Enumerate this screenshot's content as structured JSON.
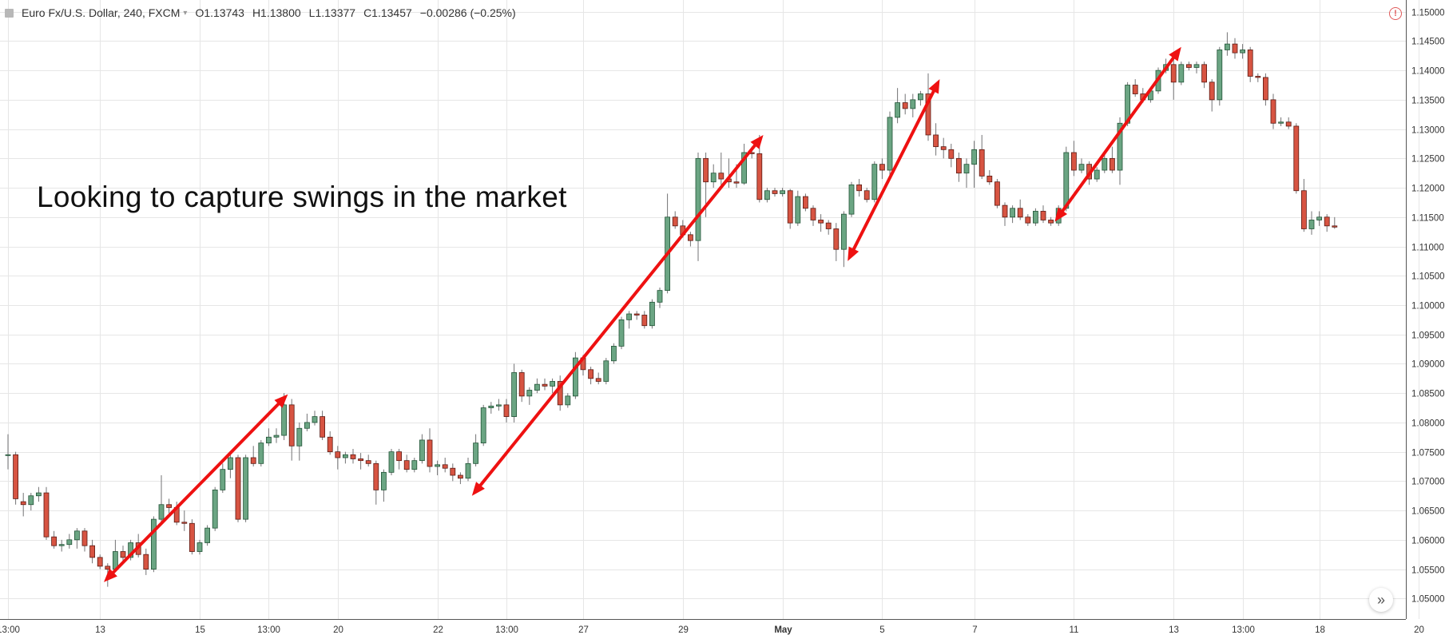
{
  "legend": {
    "symbol_title": "Euro Fx/U.S. Dollar, 240, FXCM",
    "open": "O1.13743",
    "high": "H1.13800",
    "low": "L1.13377",
    "close": "C1.13457",
    "change": "−0.00286 (−0.25%)"
  },
  "annotation": "Looking to capture swings in the market",
  "icons": {
    "symbol": "symbol-square-icon",
    "dropdown": "caret-down-icon",
    "alert": "alert-circle-icon",
    "scroll": "double-chevron-right-icon"
  },
  "colors": {
    "up": "#6ba583",
    "up_border": "#225437",
    "down": "#d75442",
    "down_border": "#5b1a13",
    "wick": "#737375",
    "arrow": "#ee1111",
    "grid": "#e6e6e6",
    "axis_text": "#333333"
  },
  "chart_data": {
    "type": "candlestick",
    "title": "Euro Fx/U.S. Dollar, 240, FXCM",
    "price_axis": {
      "side": "right",
      "ylim": [
        1.0465,
        1.152
      ],
      "ticks": [
        "1.15000",
        "1.14500",
        "1.14000",
        "1.13500",
        "1.13000",
        "1.12500",
        "1.12000",
        "1.11500",
        "1.11000",
        "1.10500",
        "1.10000",
        "1.09500",
        "1.09000",
        "1.08500",
        "1.08000",
        "1.07500",
        "1.07000",
        "1.06500",
        "1.06000",
        "1.05500",
        "1.05000"
      ]
    },
    "time_axis": {
      "labels": [
        {
          "label": "13:00",
          "bar": 0
        },
        {
          "label": "13",
          "bar": 12
        },
        {
          "label": "15",
          "bar": 25
        },
        {
          "label": "13:00",
          "bar": 34
        },
        {
          "label": "20",
          "bar": 43
        },
        {
          "label": "22",
          "bar": 56
        },
        {
          "label": "13:00",
          "bar": 65
        },
        {
          "label": "27",
          "bar": 75
        },
        {
          "label": "29",
          "bar": 88
        },
        {
          "label": "May",
          "bar": 101
        },
        {
          "label": "5",
          "bar": 114
        },
        {
          "label": "7",
          "bar": 126
        },
        {
          "label": "11",
          "bar": 139
        },
        {
          "label": "13",
          "bar": 152
        },
        {
          "label": "13:00",
          "bar": 161
        },
        {
          "label": "18",
          "bar": 171
        },
        {
          "label": "20",
          "bar": 184
        }
      ]
    },
    "grid": true,
    "candles": [
      [
        1.0745,
        1.078,
        1.072,
        1.0745
      ],
      [
        1.0745,
        1.075,
        1.066,
        1.067
      ],
      [
        1.0665,
        1.068,
        1.064,
        1.066
      ],
      [
        1.066,
        1.068,
        1.065,
        1.0675
      ],
      [
        1.0675,
        1.069,
        1.0665,
        1.068
      ],
      [
        1.068,
        1.069,
        1.06,
        1.0605
      ],
      [
        1.0605,
        1.0615,
        1.0585,
        1.059
      ],
      [
        1.059,
        1.06,
        1.058,
        1.0592
      ],
      [
        1.0592,
        1.061,
        1.0585,
        1.06
      ],
      [
        1.06,
        1.062,
        1.0585,
        1.0615
      ],
      [
        1.0615,
        1.062,
        1.058,
        1.059
      ],
      [
        1.059,
        1.06,
        1.056,
        1.057
      ],
      [
        1.057,
        1.0575,
        1.055,
        1.0555
      ],
      [
        1.0555,
        1.056,
        1.052,
        1.055
      ],
      [
        1.055,
        1.06,
        1.0545,
        1.058
      ],
      [
        1.058,
        1.059,
        1.056,
        1.057
      ],
      [
        1.057,
        1.06,
        1.0565,
        1.0595
      ],
      [
        1.0595,
        1.061,
        1.057,
        1.0575
      ],
      [
        1.0575,
        1.0585,
        1.054,
        1.055
      ],
      [
        1.055,
        1.064,
        1.0545,
        1.0635
      ],
      [
        1.0635,
        1.071,
        1.063,
        1.066
      ],
      [
        1.066,
        1.067,
        1.0645,
        1.0655
      ],
      [
        1.0655,
        1.0665,
        1.0625,
        1.063
      ],
      [
        1.063,
        1.065,
        1.0615,
        1.0628
      ],
      [
        1.0628,
        1.0635,
        1.0575,
        1.058
      ],
      [
        1.058,
        1.06,
        1.0575,
        1.0595
      ],
      [
        1.0595,
        1.0625,
        1.059,
        1.062
      ],
      [
        1.062,
        1.069,
        1.0615,
        1.0685
      ],
      [
        1.0685,
        1.073,
        1.068,
        1.072
      ],
      [
        1.072,
        1.0745,
        1.0705,
        1.074
      ],
      [
        1.074,
        1.0745,
        1.063,
        1.0635
      ],
      [
        1.0635,
        1.0745,
        1.063,
        1.074
      ],
      [
        1.074,
        1.076,
        1.0725,
        1.073
      ],
      [
        1.073,
        1.077,
        1.0725,
        1.0765
      ],
      [
        1.0765,
        1.079,
        1.076,
        1.0775
      ],
      [
        1.0775,
        1.079,
        1.0765,
        1.0778
      ],
      [
        1.0778,
        1.085,
        1.077,
        1.083
      ],
      [
        1.083,
        1.084,
        1.0735,
        1.076
      ],
      [
        1.076,
        1.08,
        1.0735,
        1.079
      ],
      [
        1.079,
        1.0815,
        1.0785,
        1.08
      ],
      [
        1.08,
        1.082,
        1.0795,
        1.081
      ],
      [
        1.081,
        1.082,
        1.077,
        1.0775
      ],
      [
        1.0775,
        1.0785,
        1.0745,
        1.075
      ],
      [
        1.075,
        1.076,
        1.072,
        1.074
      ],
      [
        1.074,
        1.075,
        1.073,
        1.0745
      ],
      [
        1.0745,
        1.0755,
        1.073,
        1.0738
      ],
      [
        1.0738,
        1.0748,
        1.072,
        1.0735
      ],
      [
        1.0735,
        1.0745,
        1.0725,
        1.073
      ],
      [
        1.073,
        1.0735,
        1.066,
        1.0685
      ],
      [
        1.0685,
        1.072,
        1.0665,
        1.0715
      ],
      [
        1.0715,
        1.0755,
        1.071,
        1.075
      ],
      [
        1.075,
        1.0755,
        1.072,
        1.0735
      ],
      [
        1.0735,
        1.0745,
        1.0715,
        1.072
      ],
      [
        1.072,
        1.074,
        1.0715,
        1.0735
      ],
      [
        1.0735,
        1.078,
        1.073,
        1.077
      ],
      [
        1.077,
        1.079,
        1.0715,
        1.0725
      ],
      [
        1.0725,
        1.0735,
        1.071,
        1.0728
      ],
      [
        1.0728,
        1.074,
        1.0715,
        1.0722
      ],
      [
        1.0722,
        1.073,
        1.07,
        1.071
      ],
      [
        1.071,
        1.0715,
        1.0695,
        1.0705
      ],
      [
        1.0705,
        1.074,
        1.07,
        1.073
      ],
      [
        1.073,
        1.078,
        1.0725,
        1.0765
      ],
      [
        1.0765,
        1.083,
        1.076,
        1.0825
      ],
      [
        1.0825,
        1.0835,
        1.0815,
        1.0828
      ],
      [
        1.0828,
        1.084,
        1.082,
        1.083
      ],
      [
        1.083,
        1.084,
        1.08,
        1.081
      ],
      [
        1.081,
        1.09,
        1.08,
        1.0885
      ],
      [
        1.0885,
        1.089,
        1.0835,
        1.0845
      ],
      [
        1.0845,
        1.086,
        1.083,
        1.0855
      ],
      [
        1.0855,
        1.0875,
        1.085,
        1.0865
      ],
      [
        1.0865,
        1.0875,
        1.0855,
        1.0862
      ],
      [
        1.0862,
        1.0875,
        1.085,
        1.087
      ],
      [
        1.087,
        1.088,
        1.082,
        1.083
      ],
      [
        1.083,
        1.085,
        1.0825,
        1.0845
      ],
      [
        1.0845,
        1.092,
        1.084,
        1.091
      ],
      [
        1.091,
        1.0915,
        1.088,
        1.089
      ],
      [
        1.089,
        1.0895,
        1.0865,
        1.0875
      ],
      [
        1.0875,
        1.0885,
        1.0865,
        1.087
      ],
      [
        1.087,
        1.091,
        1.0865,
        1.0905
      ],
      [
        1.0905,
        1.0935,
        1.09,
        1.093
      ],
      [
        1.093,
        1.098,
        1.0925,
        1.0975
      ],
      [
        1.0975,
        1.099,
        1.096,
        1.0985
      ],
      [
        1.0985,
        1.099,
        1.0975,
        1.0983
      ],
      [
        1.0983,
        1.099,
        1.096,
        1.0965
      ],
      [
        1.0965,
        1.101,
        1.096,
        1.1005
      ],
      [
        1.1005,
        1.103,
        1.0995,
        1.1025
      ],
      [
        1.1025,
        1.119,
        1.102,
        1.115
      ],
      [
        1.115,
        1.116,
        1.113,
        1.1135
      ],
      [
        1.1135,
        1.1145,
        1.1115,
        1.112
      ],
      [
        1.112,
        1.1125,
        1.11,
        1.111
      ],
      [
        1.111,
        1.126,
        1.1075,
        1.125
      ],
      [
        1.125,
        1.126,
        1.115,
        1.121
      ],
      [
        1.121,
        1.124,
        1.12,
        1.1225
      ],
      [
        1.1225,
        1.126,
        1.1205,
        1.1215
      ],
      [
        1.1215,
        1.125,
        1.12,
        1.121
      ],
      [
        1.121,
        1.124,
        1.12,
        1.1208
      ],
      [
        1.1208,
        1.1275,
        1.1205,
        1.126
      ],
      [
        1.126,
        1.127,
        1.125,
        1.1258
      ],
      [
        1.1258,
        1.129,
        1.1175,
        1.118
      ],
      [
        1.118,
        1.12,
        1.1175,
        1.1195
      ],
      [
        1.1195,
        1.12,
        1.1185,
        1.119
      ],
      [
        1.119,
        1.12,
        1.1185,
        1.1195
      ],
      [
        1.1195,
        1.1198,
        1.113,
        1.114
      ],
      [
        1.114,
        1.1195,
        1.1135,
        1.1185
      ],
      [
        1.1185,
        1.119,
        1.116,
        1.1165
      ],
      [
        1.1165,
        1.117,
        1.1135,
        1.1145
      ],
      [
        1.1145,
        1.1155,
        1.1125,
        1.114
      ],
      [
        1.114,
        1.1145,
        1.112,
        1.113
      ],
      [
        1.113,
        1.114,
        1.1075,
        1.1095
      ],
      [
        1.1095,
        1.116,
        1.1065,
        1.1155
      ],
      [
        1.1155,
        1.121,
        1.115,
        1.1205
      ],
      [
        1.1205,
        1.1215,
        1.1185,
        1.1195
      ],
      [
        1.1195,
        1.12,
        1.1175,
        1.118
      ],
      [
        1.118,
        1.1245,
        1.1175,
        1.124
      ],
      [
        1.124,
        1.125,
        1.1215,
        1.123
      ],
      [
        1.123,
        1.133,
        1.122,
        1.132
      ],
      [
        1.132,
        1.137,
        1.131,
        1.1345
      ],
      [
        1.1345,
        1.136,
        1.1325,
        1.1335
      ],
      [
        1.1335,
        1.136,
        1.132,
        1.135
      ],
      [
        1.135,
        1.1365,
        1.134,
        1.136
      ],
      [
        1.136,
        1.1395,
        1.128,
        1.129
      ],
      [
        1.129,
        1.131,
        1.1255,
        1.127
      ],
      [
        1.127,
        1.1285,
        1.125,
        1.1265
      ],
      [
        1.1265,
        1.1275,
        1.1235,
        1.125
      ],
      [
        1.125,
        1.126,
        1.121,
        1.1225
      ],
      [
        1.1225,
        1.125,
        1.12,
        1.124
      ],
      [
        1.124,
        1.128,
        1.12,
        1.1265
      ],
      [
        1.1265,
        1.129,
        1.1215,
        1.122
      ],
      [
        1.122,
        1.123,
        1.1205,
        1.121
      ],
      [
        1.121,
        1.1215,
        1.1165,
        1.117
      ],
      [
        1.117,
        1.1175,
        1.1135,
        1.115
      ],
      [
        1.115,
        1.117,
        1.114,
        1.1165
      ],
      [
        1.1165,
        1.118,
        1.1145,
        1.115
      ],
      [
        1.115,
        1.1155,
        1.1135,
        1.114
      ],
      [
        1.114,
        1.1165,
        1.1135,
        1.116
      ],
      [
        1.116,
        1.117,
        1.114,
        1.1145
      ],
      [
        1.1145,
        1.115,
        1.1135,
        1.114
      ],
      [
        1.114,
        1.117,
        1.1135,
        1.1165
      ],
      [
        1.1165,
        1.127,
        1.116,
        1.126
      ],
      [
        1.126,
        1.128,
        1.122,
        1.123
      ],
      [
        1.123,
        1.125,
        1.1225,
        1.124
      ],
      [
        1.124,
        1.1245,
        1.1205,
        1.1215
      ],
      [
        1.1215,
        1.1235,
        1.121,
        1.123
      ],
      [
        1.123,
        1.126,
        1.1225,
        1.125
      ],
      [
        1.125,
        1.127,
        1.1225,
        1.123
      ],
      [
        1.123,
        1.132,
        1.1205,
        1.131
      ],
      [
        1.131,
        1.138,
        1.1305,
        1.1375
      ],
      [
        1.1375,
        1.1385,
        1.1355,
        1.136
      ],
      [
        1.136,
        1.137,
        1.1345,
        1.135
      ],
      [
        1.135,
        1.137,
        1.1345,
        1.1365
      ],
      [
        1.1365,
        1.1405,
        1.136,
        1.14
      ],
      [
        1.14,
        1.142,
        1.1395,
        1.141
      ],
      [
        1.141,
        1.142,
        1.135,
        1.138
      ],
      [
        1.138,
        1.1415,
        1.1375,
        1.141
      ],
      [
        1.141,
        1.1415,
        1.14,
        1.1405
      ],
      [
        1.1405,
        1.1415,
        1.1395,
        1.141
      ],
      [
        1.141,
        1.1415,
        1.137,
        1.138
      ],
      [
        1.138,
        1.1385,
        1.133,
        1.135
      ],
      [
        1.135,
        1.144,
        1.134,
        1.1435
      ],
      [
        1.1435,
        1.1465,
        1.1425,
        1.1445
      ],
      [
        1.1445,
        1.1455,
        1.142,
        1.143
      ],
      [
        1.143,
        1.1445,
        1.142,
        1.1435
      ],
      [
        1.1435,
        1.144,
        1.138,
        1.139
      ],
      [
        1.139,
        1.1395,
        1.138,
        1.1388
      ],
      [
        1.1388,
        1.1395,
        1.134,
        1.135
      ],
      [
        1.135,
        1.136,
        1.13,
        1.131
      ],
      [
        1.131,
        1.132,
        1.1305,
        1.1312
      ],
      [
        1.1312,
        1.132,
        1.13,
        1.1305
      ],
      [
        1.1305,
        1.131,
        1.119,
        1.1195
      ],
      [
        1.1195,
        1.1215,
        1.1125,
        1.113
      ],
      [
        1.113,
        1.116,
        1.112,
        1.1145
      ],
      [
        1.1145,
        1.116,
        1.1135,
        1.115
      ],
      [
        1.115,
        1.1155,
        1.1125,
        1.1135
      ],
      [
        1.1135,
        1.115,
        1.113,
        1.1133
      ]
    ],
    "arrows": [
      {
        "from_bar": 12.5,
        "from_price": 1.0528,
        "to_bar": 36.5,
        "to_price": 1.0848
      },
      {
        "from_bar": 60.5,
        "from_price": 1.0675,
        "to_bar": 98.5,
        "to_price": 1.129
      },
      {
        "from_bar": 109.5,
        "from_price": 1.1075,
        "to_bar": 121.5,
        "to_price": 1.1385
      },
      {
        "from_bar": 136.5,
        "from_price": 1.1142,
        "to_bar": 153.0,
        "to_price": 1.144
      }
    ]
  }
}
